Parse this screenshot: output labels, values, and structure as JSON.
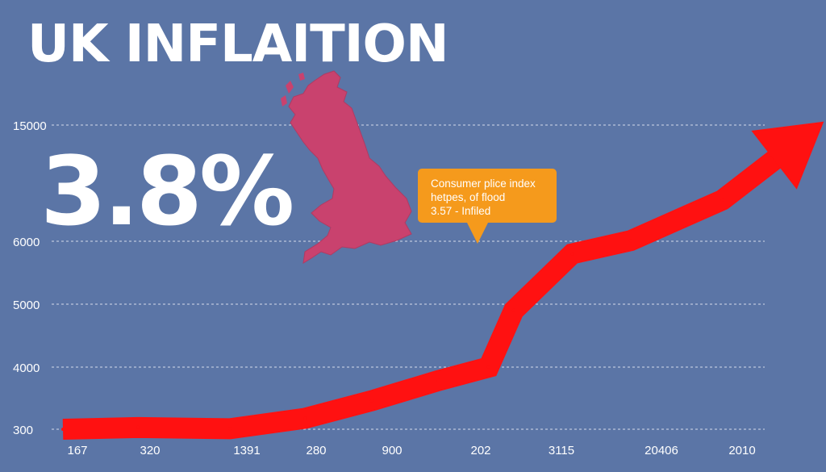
{
  "title": "UK INFLAITION",
  "headline_rate": "3.8%",
  "tooltip": {
    "line1": "Consumer plice index",
    "line2": "hetpes, of flood",
    "line3": "3.57 -  Infiled"
  },
  "colors": {
    "background": "#5b75a6",
    "trend": "#ff1111",
    "tooltip": "#f59a1c",
    "map": "#c9426e"
  },
  "icons": [
    "uk-map-icon",
    "trend-arrow-icon"
  ],
  "chart_data": {
    "type": "line",
    "title": "UK INFLAITION",
    "xlabel": "",
    "ylabel": "",
    "x_tick_labels": [
      "167",
      "320",
      "1391",
      "280",
      "900",
      "202",
      "3115",
      "20406",
      "2010"
    ],
    "y_tick_labels": [
      "300",
      "4000",
      "5000",
      "6000",
      "15000"
    ],
    "y_ticks": [
      300,
      4000,
      5000,
      6000,
      15000
    ],
    "grid": true,
    "series": [
      {
        "name": "Consumer price index",
        "x": [
          0.0,
          0.9,
          2.0,
          2.9,
          3.7,
          4.5,
          5.1,
          5.4,
          6.1,
          6.8,
          7.9,
          8.9
        ],
        "values": [
          300,
          400,
          330,
          950,
          2000,
          3200,
          4000,
          4900,
          5800,
          6050,
          9200,
          14200
        ]
      }
    ],
    "annotations": [
      "3.8%"
    ]
  }
}
